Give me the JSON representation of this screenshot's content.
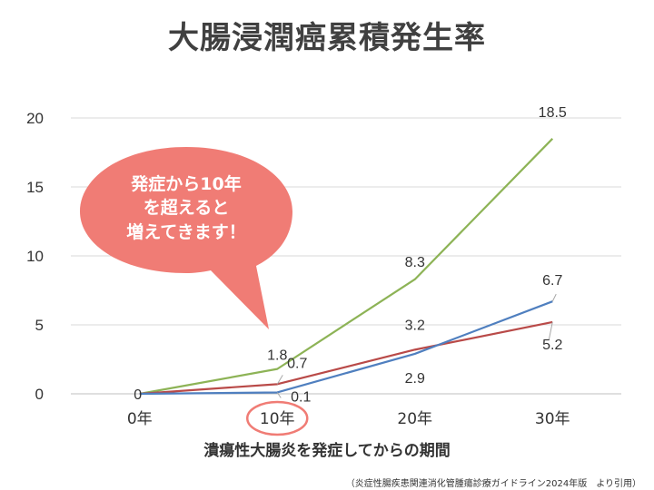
{
  "title": "大腸浸潤癌累積発生率",
  "xlabel": "潰瘍性大腸炎を発症してからの期間",
  "source": "（炎症性腸疾患関連消化管腫瘍診療ガイドライン2024年版　より引用）",
  "callout": {
    "lines": [
      "発症から10年",
      "を超えると",
      "増えてきます！"
    ],
    "color": "#f07c75",
    "highlight_category": "10年",
    "highlight_color": "#f07c75"
  },
  "chart_data": {
    "type": "line",
    "categories": [
      "0年",
      "10年",
      "20年",
      "30年"
    ],
    "ylim": [
      0,
      20
    ],
    "yticks": [
      0,
      5,
      10,
      15,
      20
    ],
    "grid": true,
    "series": [
      {
        "color": "#8db356",
        "values": [
          0,
          1.8,
          8.3,
          18.5
        ],
        "labels": [
          "",
          "1.8",
          "8.3",
          "18.5"
        ]
      },
      {
        "color": "#b94a48",
        "values": [
          0,
          0.7,
          3.2,
          5.2
        ],
        "labels": [
          "0",
          "0.7",
          "3.2",
          "5.2"
        ]
      },
      {
        "color": "#4f7fbf",
        "values": [
          0,
          0.1,
          2.9,
          6.7
        ],
        "labels": [
          "",
          "0.1",
          "2.9",
          "6.7"
        ]
      }
    ]
  }
}
